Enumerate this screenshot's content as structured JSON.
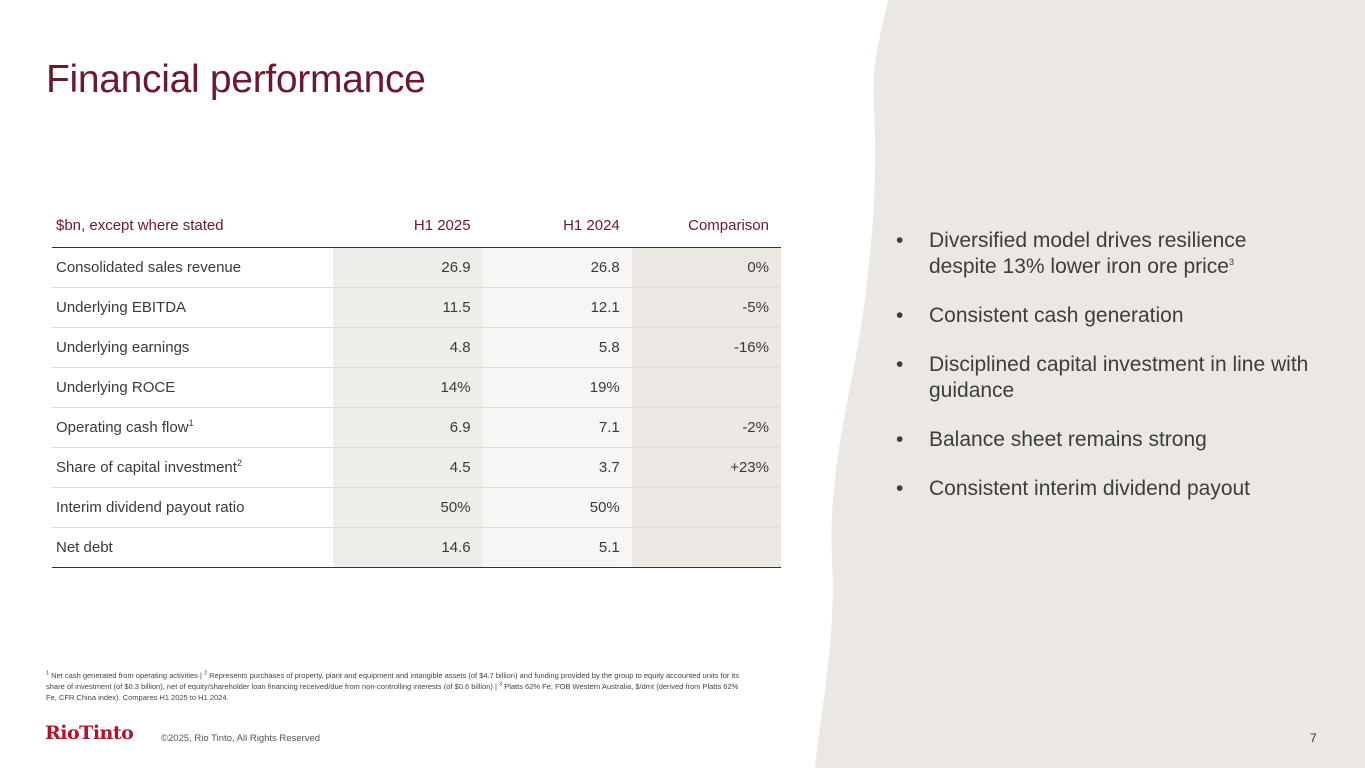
{
  "slide": {
    "title": "Financial performance",
    "page_number": "7",
    "copyright": "©2025, Rio Tinto, All Rights Reserved",
    "logo_text": "RioTinto",
    "colors": {
      "title": "#6b1a2c",
      "panel": "#ebe7e2",
      "logo": "#b3122b"
    }
  },
  "table": {
    "headers": [
      "$bn, except where stated",
      "H1 2025",
      "H1 2024",
      "Comparison"
    ],
    "rows": [
      {
        "label": "Consolidated sales revenue",
        "sup": "",
        "h1_2025": "26.9",
        "h1_2024": "26.8",
        "comparison": "0%"
      },
      {
        "label": "Underlying EBITDA",
        "sup": "",
        "h1_2025": "11.5",
        "h1_2024": "12.1",
        "comparison": "-5%"
      },
      {
        "label": "Underlying earnings",
        "sup": "",
        "h1_2025": "4.8",
        "h1_2024": "5.8",
        "comparison": "-16%"
      },
      {
        "label": "Underlying ROCE",
        "sup": "",
        "h1_2025": "14%",
        "h1_2024": "19%",
        "comparison": ""
      },
      {
        "label": "Operating cash flow",
        "sup": "1",
        "h1_2025": "6.9",
        "h1_2024": "7.1",
        "comparison": "-2%"
      },
      {
        "label": "Share of capital investment",
        "sup": "2",
        "h1_2025": "4.5",
        "h1_2024": "3.7",
        "comparison": "+23%"
      },
      {
        "label": "Interim dividend payout ratio",
        "sup": "",
        "h1_2025": "50%",
        "h1_2024": "50%",
        "comparison": ""
      },
      {
        "label": "Net debt",
        "sup": "",
        "h1_2025": "14.6",
        "h1_2024": "5.1",
        "comparison": ""
      }
    ]
  },
  "bullets": {
    "marker": "•",
    "items": [
      {
        "text": "Diversified model drives resilience despite 13% lower iron ore price",
        "sup": "3"
      },
      {
        "text": "Consistent cash generation",
        "sup": ""
      },
      {
        "text": "Disciplined capital investment in line with guidance",
        "sup": ""
      },
      {
        "text": "Balance sheet remains strong",
        "sup": ""
      },
      {
        "text": "Consistent interim dividend payout",
        "sup": ""
      }
    ]
  },
  "footnote": {
    "sup1": "1",
    "part1": " Net cash generated from operating activities | ",
    "sup2": "2",
    "part2": " Represents purchases of property, plant and equipment and intangible assets (of $4.7 billion) and funding provided by the group to equity accounted units for its share of investment (of $0.3 billion), net of equity/shareholder loan financing received/due from non-controlling interests (of $0.6 billion) | ",
    "sup3": "3",
    "part3": " Platts 62% Fe, FOB Western Australia, $/dmt (derived from Platts 62% Fe, CFR China index). Compares H1 2025 to H1 2024."
  }
}
